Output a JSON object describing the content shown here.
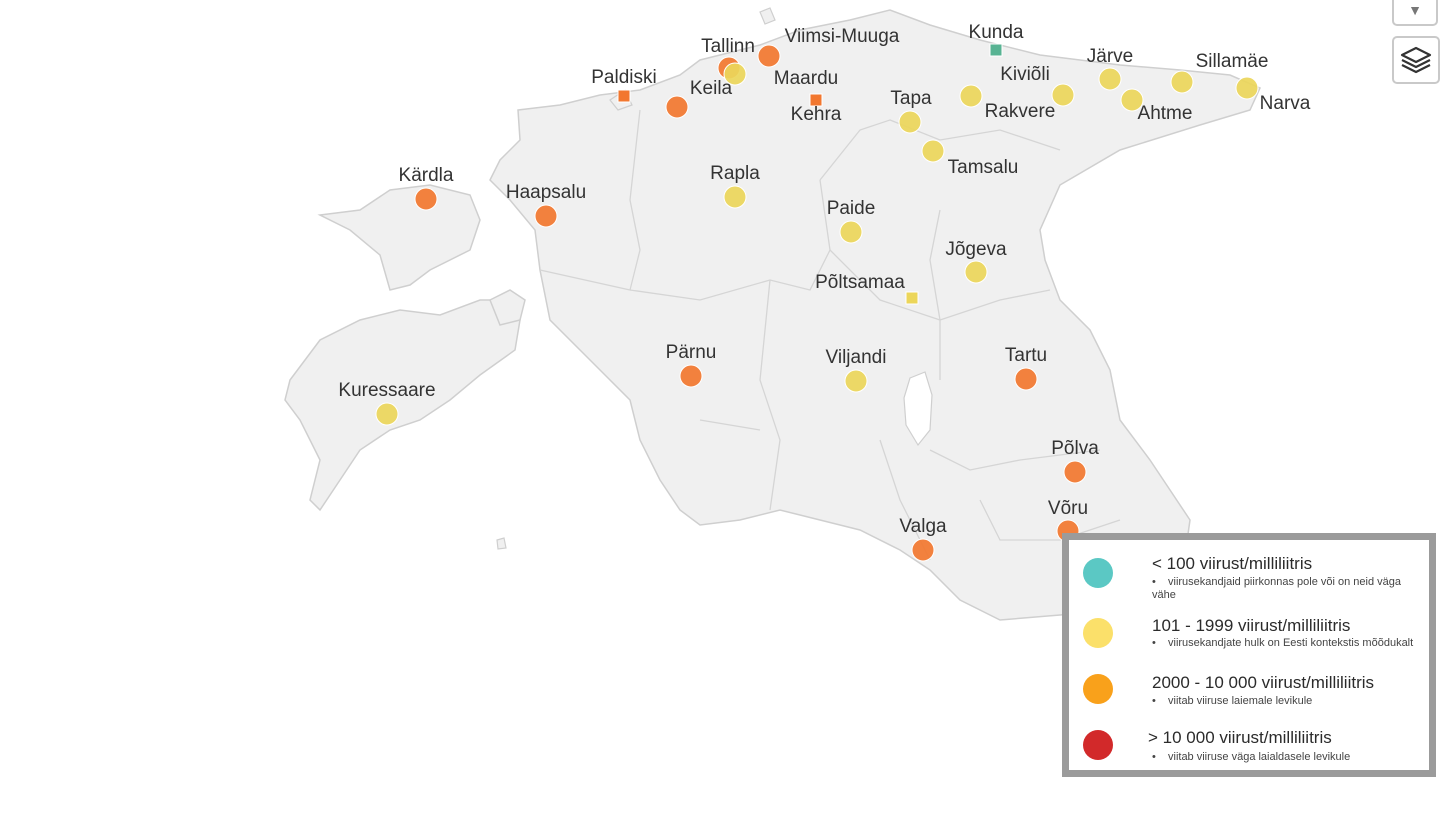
{
  "legend": {
    "items": [
      {
        "title": "< 100 viirust/milliliitris",
        "note": "viirusekandjaid piirkonnas pole või on neid väga vähe",
        "color": "#5bc8c4"
      },
      {
        "title": "101 - 1999 viirust/milliliitris",
        "note": "viirusekandjate hulk on Eesti kontekstis mõõdukalt",
        "color": "#fbe06a"
      },
      {
        "title": "2000 - 10 000 viirust/milliliitris",
        "note": "viitab viiruse laiemale levikule",
        "color": "#f9a11b"
      },
      {
        "title": "> 10 000 viirust/milliliitris",
        "note": "viitab viiruse väga laialdasele levikule",
        "color": "#d2292a"
      }
    ]
  },
  "colors": {
    "yellow": "#ecd65a",
    "orange": "#f2772f",
    "teal": "#58b393",
    "land": "#f0f0f0",
    "border": "#cfcfcf"
  },
  "cities": [
    {
      "name": "Tallinn",
      "level": "orange"
    },
    {
      "name": "Viimsi-Muuga",
      "level": "orange"
    },
    {
      "name": "Kunda",
      "level": "teal",
      "marker": "square"
    },
    {
      "name": "Paldiski",
      "level": "orange",
      "marker": "square"
    },
    {
      "name": "Maardu",
      "level": "yellow"
    },
    {
      "name": "Keila",
      "level": "orange"
    },
    {
      "name": "Kehra",
      "level": "orange",
      "marker": "square"
    },
    {
      "name": "Järve",
      "level": "yellow"
    },
    {
      "name": "Sillamäe",
      "level": "yellow"
    },
    {
      "name": "Kiviõli",
      "level": "yellow"
    },
    {
      "name": "Rakvere",
      "level": "yellow"
    },
    {
      "name": "Ahtme",
      "level": "yellow"
    },
    {
      "name": "Narva",
      "level": "yellow"
    },
    {
      "name": "Tapa",
      "level": "yellow"
    },
    {
      "name": "Tamsalu",
      "level": "yellow"
    },
    {
      "name": "Kärdla",
      "level": "orange"
    },
    {
      "name": "Haapsalu",
      "level": "orange"
    },
    {
      "name": "Rapla",
      "level": "yellow"
    },
    {
      "name": "Paide",
      "level": "yellow"
    },
    {
      "name": "Jõgeva",
      "level": "yellow"
    },
    {
      "name": "Põltsamaa",
      "level": "yellow",
      "marker": "square"
    },
    {
      "name": "Pärnu",
      "level": "orange"
    },
    {
      "name": "Viljandi",
      "level": "yellow"
    },
    {
      "name": "Tartu",
      "level": "orange"
    },
    {
      "name": "Kuressaare",
      "level": "yellow"
    },
    {
      "name": "Põlva",
      "level": "orange"
    },
    {
      "name": "Võru",
      "level": "orange"
    },
    {
      "name": "Valga",
      "level": "orange"
    }
  ]
}
